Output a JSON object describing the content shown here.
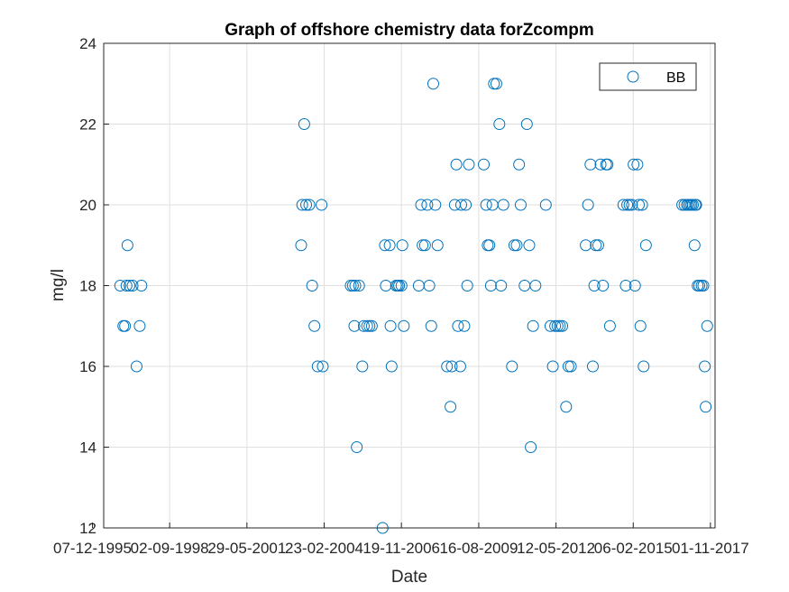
{
  "chart_data": {
    "type": "scatter",
    "title": "Graph of offshore chemistry data forZcompm",
    "xlabel": "Date",
    "ylabel": "mg/l",
    "x_axis_kind": "date",
    "xlim": [
      "1996-05-01",
      "2017-12-31"
    ],
    "ylim": [
      12,
      24
    ],
    "grid": true,
    "x_tick_dates": [
      "1995-12-07",
      "1998-09-02",
      "2001-05-29",
      "2004-02-23",
      "2006-11-19",
      "2009-08-16",
      "2012-05-12",
      "2015-02-06",
      "2017-11-01"
    ],
    "x_tick_labels": [
      "07-12-1995",
      "02-09-1998",
      "29-05-2001",
      "23-02-2004",
      "19-11-2006",
      "16-08-2009",
      "12-05-2012",
      "06-02-2015",
      "01-11-2017"
    ],
    "y_ticks": [
      12,
      14,
      16,
      18,
      20,
      22,
      24
    ],
    "legend": {
      "position": "top-right",
      "entries": [
        "BB"
      ]
    },
    "series": [
      {
        "name": "BB",
        "marker": "open-circle",
        "color": "#0072BD",
        "points": [
          [
            "1996-12-01",
            18
          ],
          [
            "1997-01-10",
            17
          ],
          [
            "1997-02-01",
            17
          ],
          [
            "1997-02-20",
            18
          ],
          [
            "1997-03-05",
            19
          ],
          [
            "1997-04-01",
            18
          ],
          [
            "1997-05-10",
            18
          ],
          [
            "1997-07-01",
            16
          ],
          [
            "1997-08-10",
            17
          ],
          [
            "1997-09-01",
            18
          ],
          [
            "2003-05-01",
            19
          ],
          [
            "2003-05-15",
            20
          ],
          [
            "2003-06-10",
            22
          ],
          [
            "2003-07-05",
            20
          ],
          [
            "2003-08-15",
            20
          ],
          [
            "2003-09-20",
            18
          ],
          [
            "2003-10-20",
            17
          ],
          [
            "2003-12-01",
            16
          ],
          [
            "2004-01-20",
            20
          ],
          [
            "2004-02-05",
            16
          ],
          [
            "2005-02-01",
            18
          ],
          [
            "2005-03-01",
            18
          ],
          [
            "2005-03-20",
            17
          ],
          [
            "2005-04-01",
            18
          ],
          [
            "2005-04-20",
            14
          ],
          [
            "2005-05-20",
            18
          ],
          [
            "2005-07-01",
            16
          ],
          [
            "2005-07-20",
            17
          ],
          [
            "2005-09-01",
            17
          ],
          [
            "2005-10-01",
            17
          ],
          [
            "2005-11-01",
            17
          ],
          [
            "2006-03-20",
            12
          ],
          [
            "2006-04-20",
            19
          ],
          [
            "2006-05-01",
            18
          ],
          [
            "2006-06-20",
            19
          ],
          [
            "2006-07-01",
            17
          ],
          [
            "2006-07-15",
            16
          ],
          [
            "2006-09-10",
            18
          ],
          [
            "2006-10-01",
            18
          ],
          [
            "2006-10-20",
            18
          ],
          [
            "2006-11-20",
            18
          ],
          [
            "2006-12-01",
            19
          ],
          [
            "2006-12-20",
            17
          ],
          [
            "2007-07-01",
            18
          ],
          [
            "2007-08-01",
            20
          ],
          [
            "2007-08-20",
            19
          ],
          [
            "2007-09-20",
            19
          ],
          [
            "2007-10-20",
            20
          ],
          [
            "2007-11-15",
            18
          ],
          [
            "2007-12-10",
            17
          ],
          [
            "2008-01-05",
            23
          ],
          [
            "2008-02-01",
            20
          ],
          [
            "2008-03-01",
            19
          ],
          [
            "2008-07-01",
            16
          ],
          [
            "2008-08-15",
            15
          ],
          [
            "2008-09-01",
            16
          ],
          [
            "2008-10-10",
            20
          ],
          [
            "2008-10-30",
            21
          ],
          [
            "2008-11-20",
            17
          ],
          [
            "2008-12-20",
            16
          ],
          [
            "2009-01-01",
            20
          ],
          [
            "2009-02-10",
            17
          ],
          [
            "2009-03-01",
            20
          ],
          [
            "2009-03-20",
            18
          ],
          [
            "2009-04-10",
            21
          ],
          [
            "2009-10-20",
            21
          ],
          [
            "2009-11-20",
            20
          ],
          [
            "2009-12-10",
            19
          ],
          [
            "2010-01-01",
            19
          ],
          [
            "2010-01-20",
            18
          ],
          [
            "2010-02-10",
            20
          ],
          [
            "2010-03-01",
            23
          ],
          [
            "2010-04-01",
            23
          ],
          [
            "2010-05-10",
            22
          ],
          [
            "2010-06-01",
            18
          ],
          [
            "2010-07-01",
            20
          ],
          [
            "2010-10-20",
            16
          ],
          [
            "2010-11-20",
            19
          ],
          [
            "2010-12-20",
            19
          ],
          [
            "2011-01-20",
            21
          ],
          [
            "2011-02-10",
            20
          ],
          [
            "2011-04-01",
            18
          ],
          [
            "2011-05-01",
            22
          ],
          [
            "2011-06-01",
            19
          ],
          [
            "2011-06-20",
            14
          ],
          [
            "2011-07-20",
            17
          ],
          [
            "2011-08-20",
            18
          ],
          [
            "2012-01-01",
            20
          ],
          [
            "2012-03-01",
            17
          ],
          [
            "2012-04-01",
            16
          ],
          [
            "2012-05-01",
            17
          ],
          [
            "2012-06-01",
            17
          ],
          [
            "2012-07-01",
            17
          ],
          [
            "2012-08-01",
            17
          ],
          [
            "2012-09-20",
            15
          ],
          [
            "2012-10-20",
            16
          ],
          [
            "2012-11-20",
            16
          ],
          [
            "2013-06-01",
            19
          ],
          [
            "2013-07-01",
            20
          ],
          [
            "2013-08-01",
            21
          ],
          [
            "2013-09-01",
            16
          ],
          [
            "2013-09-20",
            18
          ],
          [
            "2013-10-10",
            19
          ],
          [
            "2013-11-10",
            19
          ],
          [
            "2013-12-10",
            21
          ],
          [
            "2014-01-10",
            18
          ],
          [
            "2014-02-20",
            21
          ],
          [
            "2014-03-10",
            21
          ],
          [
            "2014-04-10",
            17
          ],
          [
            "2014-10-01",
            20
          ],
          [
            "2014-11-01",
            18
          ],
          [
            "2014-11-20",
            20
          ],
          [
            "2014-12-20",
            20
          ],
          [
            "2015-01-20",
            20
          ],
          [
            "2015-02-10",
            21
          ],
          [
            "2015-03-01",
            18
          ],
          [
            "2015-04-01",
            21
          ],
          [
            "2015-04-20",
            20
          ],
          [
            "2015-05-10",
            17
          ],
          [
            "2015-06-01",
            20
          ],
          [
            "2015-06-20",
            16
          ],
          [
            "2015-07-20",
            19
          ],
          [
            "2016-11-01",
            20
          ],
          [
            "2016-12-01",
            20
          ],
          [
            "2017-01-01",
            20
          ],
          [
            "2017-01-20",
            20
          ],
          [
            "2017-02-10",
            20
          ],
          [
            "2017-03-01",
            20
          ],
          [
            "2017-03-20",
            20
          ],
          [
            "2017-04-10",
            19
          ],
          [
            "2017-04-20",
            20
          ],
          [
            "2017-05-01",
            20
          ],
          [
            "2017-05-20",
            18
          ],
          [
            "2017-06-10",
            18
          ],
          [
            "2017-07-10",
            18
          ],
          [
            "2017-08-01",
            18
          ],
          [
            "2017-08-20",
            16
          ],
          [
            "2017-09-01",
            15
          ],
          [
            "2017-09-20",
            17
          ]
        ]
      }
    ]
  }
}
